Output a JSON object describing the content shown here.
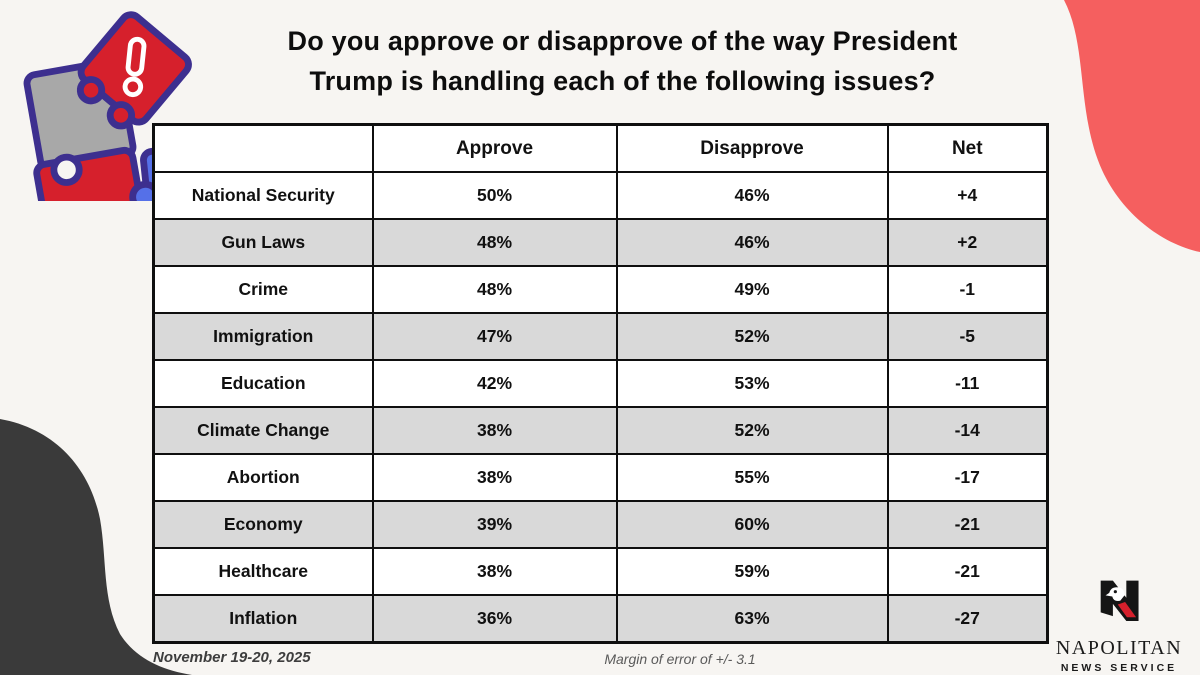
{
  "title": {
    "line1": "Do you approve or disapprove of the way President",
    "line2": "Trump is handling each of the following issues?"
  },
  "table": {
    "headers": [
      "",
      "Approve",
      "Disapprove",
      "Net"
    ],
    "rows": [
      {
        "issue": "National Security",
        "approve": "50%",
        "disapprove": "46%",
        "net": "+4"
      },
      {
        "issue": "Gun Laws",
        "approve": "48%",
        "disapprove": "46%",
        "net": "+2"
      },
      {
        "issue": "Crime",
        "approve": "48%",
        "disapprove": "49%",
        "net": "-1"
      },
      {
        "issue": "Immigration",
        "approve": "47%",
        "disapprove": "52%",
        "net": "-5"
      },
      {
        "issue": "Education",
        "approve": "42%",
        "disapprove": "53%",
        "net": "-11"
      },
      {
        "issue": "Climate Change",
        "approve": "38%",
        "disapprove": "52%",
        "net": "-14"
      },
      {
        "issue": "Abortion",
        "approve": "38%",
        "disapprove": "55%",
        "net": "-17"
      },
      {
        "issue": "Economy",
        "approve": "39%",
        "disapprove": "60%",
        "net": "-21"
      },
      {
        "issue": "Healthcare",
        "approve": "38%",
        "disapprove": "59%",
        "net": "-21"
      },
      {
        "issue": "Inflation",
        "approve": "36%",
        "disapprove": "63%",
        "net": "-27"
      }
    ]
  },
  "footer": {
    "date": "November 19-20, 2025",
    "margin_of_error": "Margin of error of +/- 3.1"
  },
  "logo": {
    "name": "NAPOLITAN",
    "tagline": "NEWS SERVICE"
  },
  "colors": {
    "background": "#F7F5F2",
    "net_positive": "#1FA95C",
    "net_negative": "#EF3B33",
    "row_alt": "#D9D9D9",
    "table_border": "#0F0F0F",
    "coral_blob": "#F55F5F",
    "dark_blob": "#3A3A3A",
    "puzzle_outline": "#3D2F8F",
    "puzzle_red": "#D6202C",
    "puzzle_blue": "#5570E8",
    "puzzle_gray": "#A8A8A8",
    "logo_red": "#D6202C"
  },
  "chart_data": {
    "type": "table",
    "title": "Do you approve or disapprove of the way President Trump is handling each of the following issues?",
    "categories": [
      "National Security",
      "Gun Laws",
      "Crime",
      "Immigration",
      "Education",
      "Climate Change",
      "Abortion",
      "Economy",
      "Healthcare",
      "Inflation"
    ],
    "series": [
      {
        "name": "Approve",
        "values": [
          50,
          48,
          48,
          47,
          42,
          38,
          38,
          39,
          38,
          36
        ]
      },
      {
        "name": "Disapprove",
        "values": [
          46,
          46,
          49,
          52,
          53,
          52,
          55,
          60,
          59,
          63
        ]
      },
      {
        "name": "Net",
        "values": [
          4,
          2,
          -1,
          -5,
          -11,
          -14,
          -17,
          -21,
          -21,
          -27
        ]
      }
    ],
    "notes": [
      "November 19-20, 2025",
      "Margin of error of +/- 3.1"
    ]
  }
}
